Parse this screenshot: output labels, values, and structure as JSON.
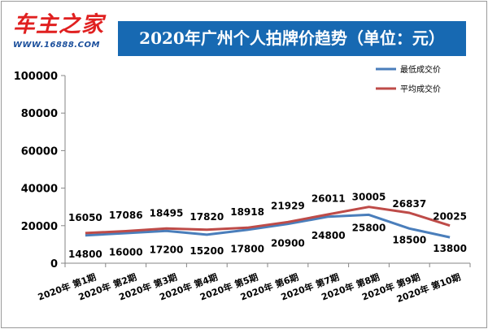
{
  "logo": {
    "main": "车主之家",
    "sub": "WWW.16888.COM"
  },
  "colors": {
    "title_bg": "#1769b2",
    "series_low": "#4a7ebb",
    "series_avg": "#be4b48",
    "logo_red": "#e02020",
    "logo_blue": "#1b4f9c"
  },
  "chart_data": {
    "type": "line",
    "title": "2020年广州个人拍牌价趋势（单位：元）",
    "categories": [
      "2020年 第1期",
      "2020年 第2期",
      "2020年 第3期",
      "2020年 第4期",
      "2020年 第5期",
      "2020年 第6期",
      "2020年 第7期",
      "2020年 第8期",
      "2020年 第9期",
      "2020年 第10期"
    ],
    "series": [
      {
        "name": "最低成交价",
        "color": "#4a7ebb",
        "values": [
          14800,
          16000,
          17200,
          15200,
          17800,
          20900,
          24800,
          25800,
          18500,
          13800
        ]
      },
      {
        "name": "平均成交价",
        "color": "#be4b48",
        "values": [
          16050,
          17086,
          18495,
          17820,
          18918,
          21929,
          26011,
          30005,
          26837,
          20025
        ]
      }
    ],
    "ylim": [
      0,
      100000
    ],
    "yticks": [
      0,
      20000,
      40000,
      60000,
      80000,
      100000
    ],
    "ytick_labels": [
      "0",
      "20000",
      "40000",
      "60000",
      "80000",
      "100000"
    ],
    "grid": false,
    "legend": "top-right"
  }
}
